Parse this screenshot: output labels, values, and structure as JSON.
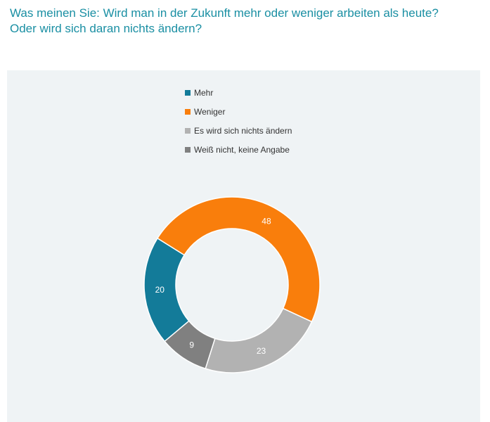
{
  "title": {
    "line1": "Was meinen Sie: Wird man in der Zukunft mehr oder weniger arbeiten als heute?",
    "line2": "Oder wird sich daran nichts ändern?"
  },
  "chart_data": {
    "type": "pie",
    "variant": "donut",
    "categories": [
      "Mehr",
      "Weniger",
      "Es wird sich nichts ändern",
      "Weiß nicht, keine Angabe"
    ],
    "values": [
      20,
      48,
      23,
      9
    ],
    "colors": [
      "#137b99",
      "#f97e0c",
      "#b2b2b2",
      "#808080"
    ],
    "legend": "top-left"
  }
}
